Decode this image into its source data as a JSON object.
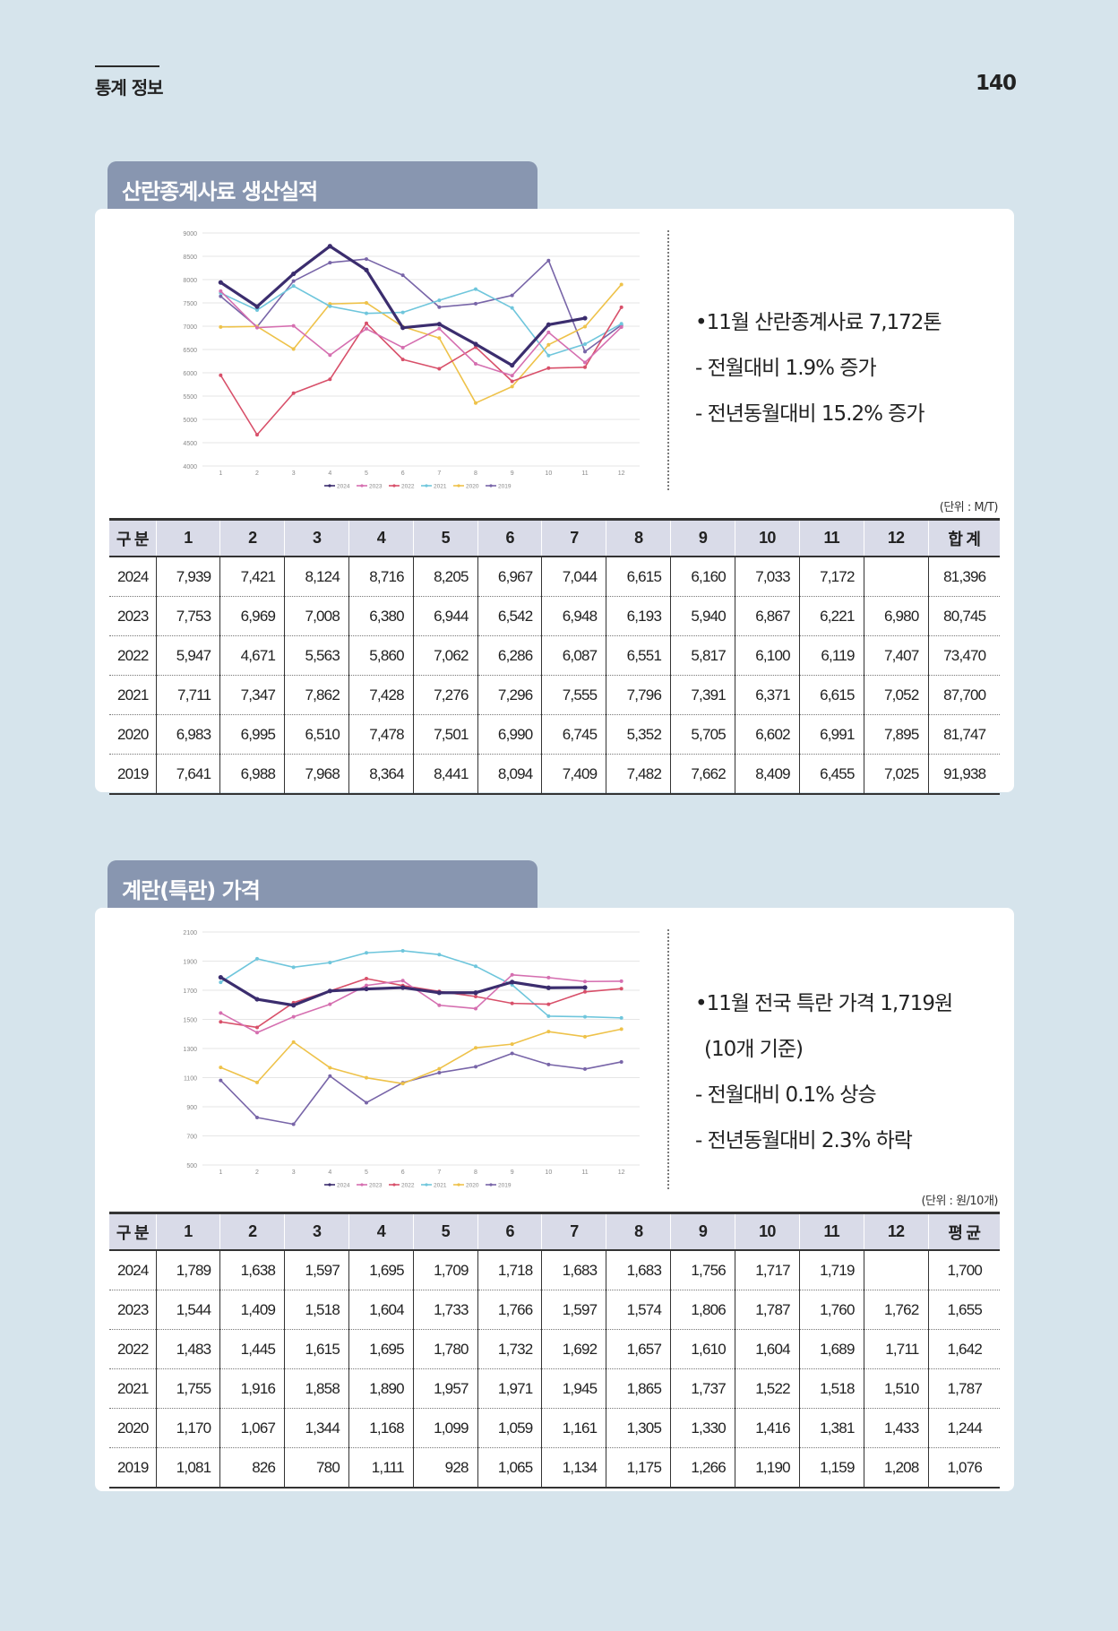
{
  "header": {
    "title": "통계 정보",
    "page_number": "140"
  },
  "months": [
    "1",
    "2",
    "3",
    "4",
    "5",
    "6",
    "7",
    "8",
    "9",
    "10",
    "11",
    "12"
  ],
  "colors": {
    "2024": "#3b2d6e",
    "2023": "#d56fb0",
    "2022": "#d8506a",
    "2021": "#6fc6dc",
    "2020": "#eec24a",
    "2019": "#7865a8"
  },
  "sections": [
    {
      "id": "feed",
      "title": "산란종계사료 생산실적",
      "bullets": [
        "•11월 산란종계사료 7,172톤",
        "- 전월대비 1.9% 증가",
        "- 전년동월대비 15.2% 증가"
      ],
      "unit": "(단위 : M/T)",
      "table": {
        "headers": [
          "구 분",
          "1",
          "2",
          "3",
          "4",
          "5",
          "6",
          "7",
          "8",
          "9",
          "10",
          "11",
          "12",
          "합 계"
        ],
        "rows": [
          [
            "2024",
            "7,939",
            "7,421",
            "8,124",
            "8,716",
            "8,205",
            "6,967",
            "7,044",
            "6,615",
            "6,160",
            "7,033",
            "7,172",
            "",
            "81,396"
          ],
          [
            "2023",
            "7,753",
            "6,969",
            "7,008",
            "6,380",
            "6,944",
            "6,542",
            "6,948",
            "6,193",
            "5,940",
            "6,867",
            "6,221",
            "6,980",
            "80,745"
          ],
          [
            "2022",
            "5,947",
            "4,671",
            "5,563",
            "5,860",
            "7,062",
            "6,286",
            "6,087",
            "6,551",
            "5,817",
            "6,100",
            "6,119",
            "7,407",
            "73,470"
          ],
          [
            "2021",
            "7,711",
            "7,347",
            "7,862",
            "7,428",
            "7,276",
            "7,296",
            "7,555",
            "7,796",
            "7,391",
            "6,371",
            "6,615",
            "7,052",
            "87,700"
          ],
          [
            "2020",
            "6,983",
            "6,995",
            "6,510",
            "7,478",
            "7,501",
            "6,990",
            "6,745",
            "5,352",
            "5,705",
            "6,602",
            "6,991",
            "7,895",
            "81,747"
          ],
          [
            "2019",
            "7,641",
            "6,988",
            "7,968",
            "8,364",
            "8,441",
            "8,094",
            "7,409",
            "7,482",
            "7,662",
            "8,409",
            "6,455",
            "7,025",
            "91,938"
          ]
        ]
      },
      "chart_data": {
        "type": "line",
        "x": [
          1,
          2,
          3,
          4,
          5,
          6,
          7,
          8,
          9,
          10,
          11,
          12
        ],
        "ylim": [
          4000,
          9000
        ],
        "yticks": [
          4000,
          4500,
          5000,
          5500,
          6000,
          6500,
          7000,
          7500,
          8000,
          8500,
          9000
        ],
        "grid": true,
        "legend": "bottom",
        "series": [
          {
            "name": "2024",
            "values": [
              7939,
              7421,
              8124,
              8716,
              8205,
              6967,
              7044,
              6615,
              6160,
              7033,
              7172,
              null
            ]
          },
          {
            "name": "2023",
            "values": [
              7753,
              6969,
              7008,
              6380,
              6944,
              6542,
              6948,
              6193,
              5940,
              6867,
              6221,
              6980
            ]
          },
          {
            "name": "2022",
            "values": [
              5947,
              4671,
              5563,
              5860,
              7062,
              6286,
              6087,
              6551,
              5817,
              6100,
              6119,
              7407
            ]
          },
          {
            "name": "2021",
            "values": [
              7711,
              7347,
              7862,
              7428,
              7276,
              7296,
              7555,
              7796,
              7391,
              6371,
              6615,
              7052
            ]
          },
          {
            "name": "2020",
            "values": [
              6983,
              6995,
              6510,
              7478,
              7501,
              6990,
              6745,
              5352,
              5705,
              6602,
              6991,
              7895
            ]
          },
          {
            "name": "2019",
            "values": [
              7641,
              6988,
              7968,
              8364,
              8441,
              8094,
              7409,
              7482,
              7662,
              8409,
              6455,
              7025
            ]
          }
        ]
      }
    },
    {
      "id": "egg",
      "title": "계란(특란) 가격",
      "bullets": [
        "•11월 전국 특란 가격 1,719원",
        "(10개 기준)",
        "- 전월대비 0.1% 상승",
        "- 전년동월대비 2.3% 하락"
      ],
      "unit": "(단위 : 원/10개)",
      "table": {
        "headers": [
          "구 분",
          "1",
          "2",
          "3",
          "4",
          "5",
          "6",
          "7",
          "8",
          "9",
          "10",
          "11",
          "12",
          "평 균"
        ],
        "rows": [
          [
            "2024",
            "1,789",
            "1,638",
            "1,597",
            "1,695",
            "1,709",
            "1,718",
            "1,683",
            "1,683",
            "1,756",
            "1,717",
            "1,719",
            "",
            "1,700"
          ],
          [
            "2023",
            "1,544",
            "1,409",
            "1,518",
            "1,604",
            "1,733",
            "1,766",
            "1,597",
            "1,574",
            "1,806",
            "1,787",
            "1,760",
            "1,762",
            "1,655"
          ],
          [
            "2022",
            "1,483",
            "1,445",
            "1,615",
            "1,695",
            "1,780",
            "1,732",
            "1,692",
            "1,657",
            "1,610",
            "1,604",
            "1,689",
            "1,711",
            "1,642"
          ],
          [
            "2021",
            "1,755",
            "1,916",
            "1,858",
            "1,890",
            "1,957",
            "1,971",
            "1,945",
            "1,865",
            "1,737",
            "1,522",
            "1,518",
            "1,510",
            "1,787"
          ],
          [
            "2020",
            "1,170",
            "1,067",
            "1,344",
            "1,168",
            "1,099",
            "1,059",
            "1,161",
            "1,305",
            "1,330",
            "1,416",
            "1,381",
            "1,433",
            "1,244"
          ],
          [
            "2019",
            "1,081",
            "826",
            "780",
            "1,111",
            "928",
            "1,065",
            "1,134",
            "1,175",
            "1,266",
            "1,190",
            "1,159",
            "1,208",
            "1,076"
          ]
        ]
      },
      "chart_data": {
        "type": "line",
        "x": [
          1,
          2,
          3,
          4,
          5,
          6,
          7,
          8,
          9,
          10,
          11,
          12
        ],
        "ylim": [
          500,
          2100
        ],
        "yticks": [
          500,
          700,
          900,
          1100,
          1300,
          1500,
          1700,
          1900,
          2100
        ],
        "grid": true,
        "legend": "bottom",
        "series": [
          {
            "name": "2024",
            "values": [
              1789,
              1638,
              1597,
              1695,
              1709,
              1718,
              1683,
              1683,
              1756,
              1717,
              1719,
              null
            ]
          },
          {
            "name": "2023",
            "values": [
              1544,
              1409,
              1518,
              1604,
              1733,
              1766,
              1597,
              1574,
              1806,
              1787,
              1760,
              1762
            ]
          },
          {
            "name": "2022",
            "values": [
              1483,
              1445,
              1615,
              1695,
              1780,
              1732,
              1692,
              1657,
              1610,
              1604,
              1689,
              1711
            ]
          },
          {
            "name": "2021",
            "values": [
              1755,
              1916,
              1858,
              1890,
              1957,
              1971,
              1945,
              1865,
              1737,
              1522,
              1518,
              1510
            ]
          },
          {
            "name": "2020",
            "values": [
              1170,
              1067,
              1344,
              1168,
              1099,
              1059,
              1161,
              1305,
              1330,
              1416,
              1381,
              1433
            ]
          },
          {
            "name": "2019",
            "values": [
              1081,
              826,
              780,
              1111,
              928,
              1065,
              1134,
              1175,
              1266,
              1190,
              1159,
              1208
            ]
          }
        ]
      }
    }
  ]
}
